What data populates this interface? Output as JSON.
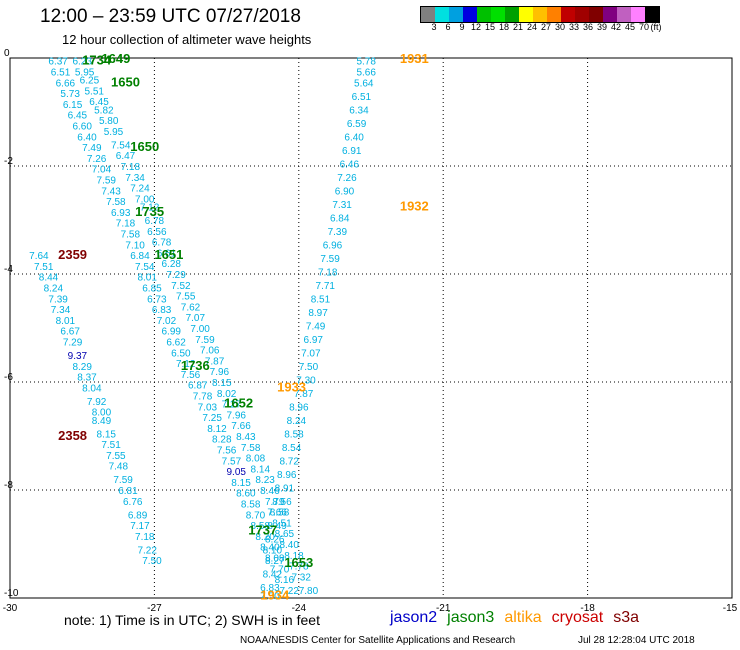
{
  "header": {
    "title": "12:00 – 23:59 UTC 07/27/2018",
    "subtitle": "12 hour collection of altimeter wave heights"
  },
  "legend": {
    "colors": [
      "#808080",
      "#00e0e0",
      "#00a0e0",
      "#0000e0",
      "#00c000",
      "#00e000",
      "#00a000",
      "#ffff00",
      "#ffc000",
      "#ff8000",
      "#c00000",
      "#a00000",
      "#800000",
      "#800080",
      "#c060c0",
      "#ff80ff",
      "#000000"
    ],
    "ticks": [
      "3",
      "6",
      "9",
      "12",
      "15",
      "18",
      "21",
      "24",
      "27",
      "30",
      "33",
      "36",
      "39",
      "42",
      "45",
      "70"
    ],
    "unit": "(ft)"
  },
  "note": "note:  1) Time is in UTC;  2) SWH is in feet",
  "satellites": [
    {
      "name": "jason2",
      "color": "#0000c8"
    },
    {
      "name": "jason3",
      "color": "#008000"
    },
    {
      "name": "altika",
      "color": "#ff9900"
    },
    {
      "name": "cryosat",
      "color": "#cc0000"
    },
    {
      "name": "s3a",
      "color": "#800000"
    }
  ],
  "footer": {
    "org": "NOAA/NESDIS Center for Satellite Applications and Research",
    "timestamp": "Jul 28 12:28:04 UTC 2018"
  },
  "chart_data": {
    "type": "scatter",
    "xlim": [
      -30,
      -15
    ],
    "ylim": [
      -10,
      0
    ],
    "xticks": [
      "-30",
      "-27",
      "-24",
      "-21",
      "-18",
      "-15"
    ],
    "yticks": [
      "0",
      "-2",
      "-4",
      "-6",
      "-8",
      "-10"
    ],
    "grid": true,
    "colors": {
      "c": "#00b0e0",
      "b": "#0000b0",
      "g": "#008000",
      "o": "#ff9900",
      "r": "#800000"
    },
    "points": [
      [
        -29.0,
        -0.05,
        "6.37",
        "c"
      ],
      [
        -28.5,
        -0.05,
        "6.23",
        "c"
      ],
      [
        -28.95,
        -0.25,
        "6.51",
        "c"
      ],
      [
        -28.45,
        -0.25,
        "5.95",
        "c"
      ],
      [
        -28.85,
        -0.45,
        "6.66",
        "c"
      ],
      [
        -28.35,
        -0.4,
        "6.25",
        "c"
      ],
      [
        -28.75,
        -0.65,
        "5.73",
        "c"
      ],
      [
        -28.25,
        -0.6,
        "5.51",
        "c"
      ],
      [
        -28.7,
        -0.85,
        "6.15",
        "c"
      ],
      [
        -28.15,
        -0.8,
        "6.45",
        "c"
      ],
      [
        -28.6,
        -1.05,
        "6.45",
        "c"
      ],
      [
        -28.05,
        -0.95,
        "5.82",
        "c"
      ],
      [
        -28.5,
        -1.25,
        "6.60",
        "c"
      ],
      [
        -27.95,
        -1.15,
        "5.80",
        "c"
      ],
      [
        -28.4,
        -1.45,
        "6.40",
        "c"
      ],
      [
        -27.85,
        -1.35,
        "5.95",
        "c"
      ],
      [
        -28.3,
        -1.65,
        "7.49",
        "c"
      ],
      [
        -27.7,
        -1.6,
        "7.54",
        "c"
      ],
      [
        -28.2,
        -1.85,
        "7.26",
        "c"
      ],
      [
        -27.6,
        -1.8,
        "6.47",
        "c"
      ],
      [
        -28.1,
        -2.05,
        "7.04",
        "c"
      ],
      [
        -27.5,
        -2.0,
        "7.18",
        "c"
      ],
      [
        -28.0,
        -2.25,
        "7.59",
        "c"
      ],
      [
        -27.4,
        -2.2,
        "7.34",
        "c"
      ],
      [
        -27.9,
        -2.45,
        "7.43",
        "c"
      ],
      [
        -27.3,
        -2.4,
        "7.24",
        "c"
      ],
      [
        -27.8,
        -2.65,
        "7.58",
        "c"
      ],
      [
        -27.2,
        -2.6,
        "7.00",
        "c"
      ],
      [
        -27.7,
        -2.85,
        "6.93",
        "c"
      ],
      [
        -27.1,
        -2.75,
        "7.12",
        "c"
      ],
      [
        -27.6,
        -3.05,
        "7.18",
        "c"
      ],
      [
        -27.0,
        -3.0,
        "6.78",
        "c"
      ],
      [
        -27.5,
        -3.25,
        "7.58",
        "c"
      ],
      [
        -26.95,
        -3.2,
        "6.56",
        "c"
      ],
      [
        -27.4,
        -3.45,
        "7.10",
        "c"
      ],
      [
        -26.85,
        -3.4,
        "6.78",
        "c"
      ],
      [
        -27.3,
        -3.65,
        "6.84",
        "c"
      ],
      [
        -26.75,
        -3.6,
        "6.61",
        "c"
      ],
      [
        -27.2,
        -3.85,
        "7.54",
        "c"
      ],
      [
        -26.65,
        -3.8,
        "6.28",
        "c"
      ],
      [
        -27.15,
        -4.05,
        "8.01",
        "c"
      ],
      [
        -26.55,
        -4.0,
        "7.29",
        "c"
      ],
      [
        -27.05,
        -4.25,
        "6.85",
        "c"
      ],
      [
        -26.45,
        -4.2,
        "7.52",
        "c"
      ],
      [
        -26.95,
        -4.45,
        "6.73",
        "c"
      ],
      [
        -26.35,
        -4.4,
        "7.55",
        "c"
      ],
      [
        -26.85,
        -4.65,
        "6.83",
        "c"
      ],
      [
        -26.25,
        -4.6,
        "7.62",
        "c"
      ],
      [
        -26.75,
        -4.85,
        "7.02",
        "c"
      ],
      [
        -26.15,
        -4.8,
        "7.07",
        "c"
      ],
      [
        -26.65,
        -5.05,
        "6.99",
        "c"
      ],
      [
        -26.05,
        -5.0,
        "7.00",
        "c"
      ],
      [
        -26.55,
        -5.25,
        "6.62",
        "c"
      ],
      [
        -25.95,
        -5.2,
        "7.59",
        "c"
      ],
      [
        -26.45,
        -5.45,
        "6.50",
        "c"
      ],
      [
        -25.85,
        -5.4,
        "7.06",
        "c"
      ],
      [
        -26.35,
        -5.65,
        "7.12",
        "c"
      ],
      [
        -25.75,
        -5.6,
        "7.87",
        "c"
      ],
      [
        -26.25,
        -5.85,
        "7.56",
        "c"
      ],
      [
        -25.65,
        -5.8,
        "7.96",
        "c"
      ],
      [
        -26.1,
        -6.05,
        "6.87",
        "c"
      ],
      [
        -25.6,
        -6.0,
        "8.15",
        "c"
      ],
      [
        -26.0,
        -6.25,
        "7.78",
        "c"
      ],
      [
        -25.5,
        -6.2,
        "8.02",
        "c"
      ],
      [
        -25.9,
        -6.45,
        "7.03",
        "c"
      ],
      [
        -25.4,
        -6.4,
        "7.27",
        "c"
      ],
      [
        -25.8,
        -6.65,
        "7.25",
        "c"
      ],
      [
        -25.3,
        -6.6,
        "7.96",
        "c"
      ],
      [
        -25.7,
        -6.85,
        "8.12",
        "c"
      ],
      [
        -25.2,
        -6.8,
        "7.66",
        "c"
      ],
      [
        -25.6,
        -7.05,
        "8.28",
        "c"
      ],
      [
        -25.1,
        -7.0,
        "8.43",
        "c"
      ],
      [
        -25.5,
        -7.25,
        "7.56",
        "c"
      ],
      [
        -25.0,
        -7.2,
        "7.58",
        "c"
      ],
      [
        -25.4,
        -7.45,
        "7.57",
        "c"
      ],
      [
        -24.9,
        -7.4,
        "8.08",
        "c"
      ],
      [
        -25.3,
        -7.65,
        "9.05",
        "b"
      ],
      [
        -24.8,
        -7.6,
        "8.14",
        "c"
      ],
      [
        -25.2,
        -7.85,
        "8.15",
        "c"
      ],
      [
        -24.7,
        -7.8,
        "8.23",
        "c"
      ],
      [
        -25.1,
        -8.05,
        "8.60",
        "c"
      ],
      [
        -24.6,
        -8.0,
        "8.46",
        "c"
      ],
      [
        -25.0,
        -8.25,
        "8.58",
        "c"
      ],
      [
        -24.5,
        -8.2,
        "7.79",
        "c"
      ],
      [
        -24.9,
        -8.45,
        "8.70",
        "c"
      ],
      [
        -24.45,
        -8.4,
        "7.66",
        "c"
      ],
      [
        -24.8,
        -8.65,
        "8.58",
        "c"
      ],
      [
        -24.35,
        -8.6,
        "8.51",
        "c"
      ],
      [
        -24.7,
        -8.85,
        "8.20",
        "c"
      ],
      [
        -24.3,
        -8.8,
        "8.65",
        "c"
      ],
      [
        -24.6,
        -9.05,
        "8.40",
        "c"
      ],
      [
        -24.2,
        -9.0,
        "8.40",
        "c"
      ],
      [
        -24.5,
        -9.25,
        "8.08",
        "c"
      ],
      [
        -24.1,
        -9.2,
        "8.18",
        "c"
      ],
      [
        -24.4,
        -9.45,
        "7.70",
        "c"
      ],
      [
        -24.0,
        -9.4,
        "7.78",
        "c"
      ],
      [
        -24.3,
        -9.65,
        "8.16",
        "c"
      ],
      [
        -23.95,
        -9.6,
        "7.32",
        "c"
      ],
      [
        -24.2,
        -9.85,
        "7.22",
        "c"
      ],
      [
        -23.8,
        -9.85,
        "7.80",
        "c"
      ],
      [
        -29.4,
        -3.65,
        "7.64",
        "c"
      ],
      [
        -29.3,
        -3.85,
        "7.51",
        "c"
      ],
      [
        -29.2,
        -4.05,
        "8.44",
        "c"
      ],
      [
        -29.1,
        -4.25,
        "8.24",
        "c"
      ],
      [
        -29.0,
        -4.45,
        "7.39",
        "c"
      ],
      [
        -28.95,
        -4.65,
        "7.34",
        "c"
      ],
      [
        -28.85,
        -4.85,
        "8.01",
        "c"
      ],
      [
        -28.75,
        -5.05,
        "6.67",
        "c"
      ],
      [
        -28.7,
        -5.25,
        "7.29",
        "c"
      ],
      [
        -28.6,
        -5.5,
        "9.37",
        "b"
      ],
      [
        -28.5,
        -5.7,
        "8.29",
        "c"
      ],
      [
        -28.4,
        -5.9,
        "8.37",
        "c"
      ],
      [
        -28.3,
        -6.1,
        "8.04",
        "c"
      ],
      [
        -28.2,
        -6.35,
        "7.92",
        "c"
      ],
      [
        -28.1,
        -6.55,
        "8.00",
        "c"
      ],
      [
        -28.1,
        -6.7,
        "8.49",
        "c"
      ],
      [
        -28.0,
        -6.95,
        "8.15",
        "c"
      ],
      [
        -27.9,
        -7.15,
        "7.51",
        "c"
      ],
      [
        -27.8,
        -7.35,
        "7.55",
        "c"
      ],
      [
        -27.75,
        -7.55,
        "7.48",
        "c"
      ],
      [
        -27.65,
        -7.8,
        "7.59",
        "c"
      ],
      [
        -27.55,
        -8.0,
        "6.81",
        "c"
      ],
      [
        -27.45,
        -8.2,
        "6.76",
        "c"
      ],
      [
        -27.35,
        -8.45,
        "6.89",
        "c"
      ],
      [
        -27.3,
        -8.65,
        "7.17",
        "c"
      ],
      [
        -27.2,
        -8.85,
        "7.18",
        "c"
      ],
      [
        -27.15,
        -9.1,
        "7.22",
        "c"
      ],
      [
        -27.05,
        -9.3,
        "7.50",
        "c"
      ],
      [
        -22.6,
        -0.05,
        "5.78",
        "c"
      ],
      [
        -22.6,
        -0.25,
        "5.66",
        "c"
      ],
      [
        -22.65,
        -0.45,
        "5.64",
        "c"
      ],
      [
        -22.7,
        -0.7,
        "6.51",
        "c"
      ],
      [
        -22.75,
        -0.95,
        "6.34",
        "c"
      ],
      [
        -22.8,
        -1.2,
        "6.59",
        "c"
      ],
      [
        -22.85,
        -1.45,
        "6.40",
        "c"
      ],
      [
        -22.9,
        -1.7,
        "6.91",
        "c"
      ],
      [
        -22.95,
        -1.95,
        "6.46",
        "c"
      ],
      [
        -23.0,
        -2.2,
        "7.26",
        "c"
      ],
      [
        -23.05,
        -2.45,
        "6.90",
        "c"
      ],
      [
        -23.1,
        -2.7,
        "7.31",
        "c"
      ],
      [
        -23.15,
        -2.95,
        "6.84",
        "c"
      ],
      [
        -23.2,
        -3.2,
        "7.39",
        "c"
      ],
      [
        -23.3,
        -3.45,
        "6.96",
        "c"
      ],
      [
        -23.35,
        -3.7,
        "7.59",
        "c"
      ],
      [
        -23.4,
        -3.95,
        "7.18",
        "c"
      ],
      [
        -23.45,
        -4.2,
        "7.71",
        "c"
      ],
      [
        -23.55,
        -4.45,
        "8.51",
        "c"
      ],
      [
        -23.6,
        -4.7,
        "8.97",
        "c"
      ],
      [
        -23.65,
        -4.95,
        "7.49",
        "c"
      ],
      [
        -23.7,
        -5.2,
        "6.97",
        "c"
      ],
      [
        -23.75,
        -5.45,
        "7.07",
        "c"
      ],
      [
        -23.8,
        -5.7,
        "7.50",
        "c"
      ],
      [
        -23.85,
        -5.95,
        "7.30",
        "c"
      ],
      [
        -23.9,
        -6.2,
        "7.87",
        "c"
      ],
      [
        -24.0,
        -6.45,
        "8.96",
        "c"
      ],
      [
        -24.05,
        -6.7,
        "8.24",
        "c"
      ],
      [
        -24.1,
        -6.95,
        "8.58",
        "c"
      ],
      [
        -24.15,
        -7.2,
        "8.54",
        "c"
      ],
      [
        -24.2,
        -7.45,
        "8.72",
        "c"
      ],
      [
        -24.25,
        -7.7,
        "8.96",
        "c"
      ],
      [
        -24.3,
        -7.95,
        "8.91",
        "c"
      ],
      [
        -24.35,
        -8.2,
        "8.56",
        "c"
      ],
      [
        -24.4,
        -8.4,
        "8.58",
        "c"
      ],
      [
        -24.45,
        -8.65,
        "8.49",
        "c"
      ],
      [
        -24.5,
        -8.9,
        "8.26",
        "c"
      ],
      [
        -24.55,
        -9.1,
        "8.10",
        "c"
      ],
      [
        -24.5,
        -9.3,
        "8.27",
        "c"
      ],
      [
        -24.55,
        -9.55,
        "8.42",
        "c"
      ],
      [
        -24.6,
        -9.8,
        "6.83",
        "c"
      ],
      [
        -24.6,
        -9.95,
        "7.50",
        "c"
      ],
      [
        -28.2,
        -0.05,
        "1734",
        "g"
      ],
      [
        -27.8,
        -0.02,
        "1649",
        "g"
      ],
      [
        -27.6,
        -0.45,
        "1650",
        "g"
      ],
      [
        -27.2,
        -1.65,
        "1650",
        "g"
      ],
      [
        -27.1,
        -2.85,
        "1735",
        "g"
      ],
      [
        -26.7,
        -3.65,
        "1651",
        "g"
      ],
      [
        -26.15,
        -5.7,
        "1736",
        "g"
      ],
      [
        -25.25,
        -6.4,
        "1652",
        "g"
      ],
      [
        -24.75,
        -8.75,
        "1737",
        "g"
      ],
      [
        -24.0,
        -9.35,
        "1653",
        "g"
      ],
      [
        -21.6,
        -0.02,
        "1931",
        "o"
      ],
      [
        -21.6,
        -2.75,
        "1932",
        "o"
      ],
      [
        -24.15,
        -6.1,
        "1933",
        "o"
      ],
      [
        -24.5,
        -9.95,
        "1934",
        "o"
      ],
      [
        -28.7,
        -3.65,
        "2359",
        "r"
      ],
      [
        -28.7,
        -7.0,
        "2358",
        "r"
      ]
    ]
  }
}
